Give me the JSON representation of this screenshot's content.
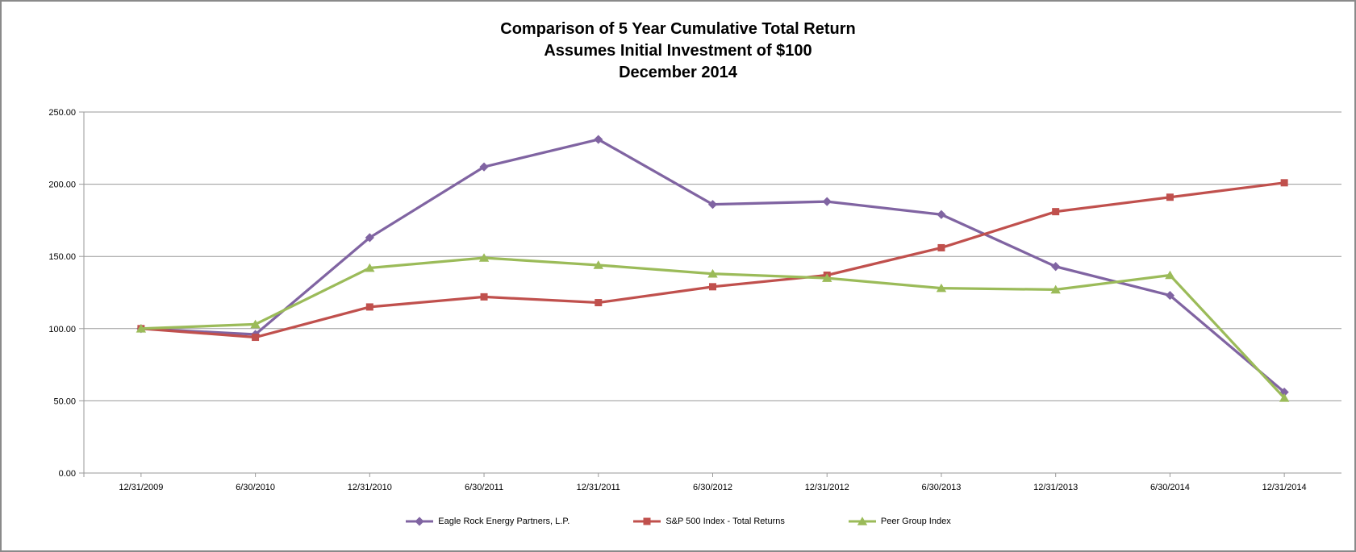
{
  "chart_data": {
    "type": "line",
    "title": "Comparison of 5 Year Cumulative Total Return",
    "subtitle": "Assumes Initial Investment of $100",
    "period": "December 2014",
    "xlabel": "",
    "ylabel": "",
    "ylim": [
      0,
      250
    ],
    "y_tick_step": 50,
    "y_ticks": [
      "0.00",
      "50.00",
      "100.00",
      "150.00",
      "200.00",
      "250.00"
    ],
    "grid": "horizontal",
    "grid_color": "#9a9a9a",
    "axis_color": "#9a9a9a",
    "legend_position": "bottom",
    "categories": [
      "12/31/2009",
      "6/30/2010",
      "12/31/2010",
      "6/30/2011",
      "12/31/2011",
      "6/30/2012",
      "12/31/2012",
      "6/30/2013",
      "12/31/2013",
      "6/30/2014",
      "12/31/2014"
    ],
    "series": [
      {
        "name": "Eagle Rock Energy Partners, L.P.",
        "marker": "diamond",
        "color": "#8064A2",
        "values": [
          100,
          96,
          163,
          212,
          231,
          186,
          188,
          179,
          143,
          123,
          56
        ]
      },
      {
        "name": "S&P 500 Index - Total Returns",
        "marker": "square",
        "color": "#C0504D",
        "values": [
          100,
          94,
          115,
          122,
          118,
          129,
          137,
          156,
          181,
          191,
          201
        ]
      },
      {
        "name": "Peer Group Index",
        "marker": "triangle",
        "color": "#9BBB59",
        "values": [
          100,
          103,
          142,
          149,
          144,
          138,
          135,
          128,
          127,
          137,
          52
        ]
      }
    ]
  }
}
